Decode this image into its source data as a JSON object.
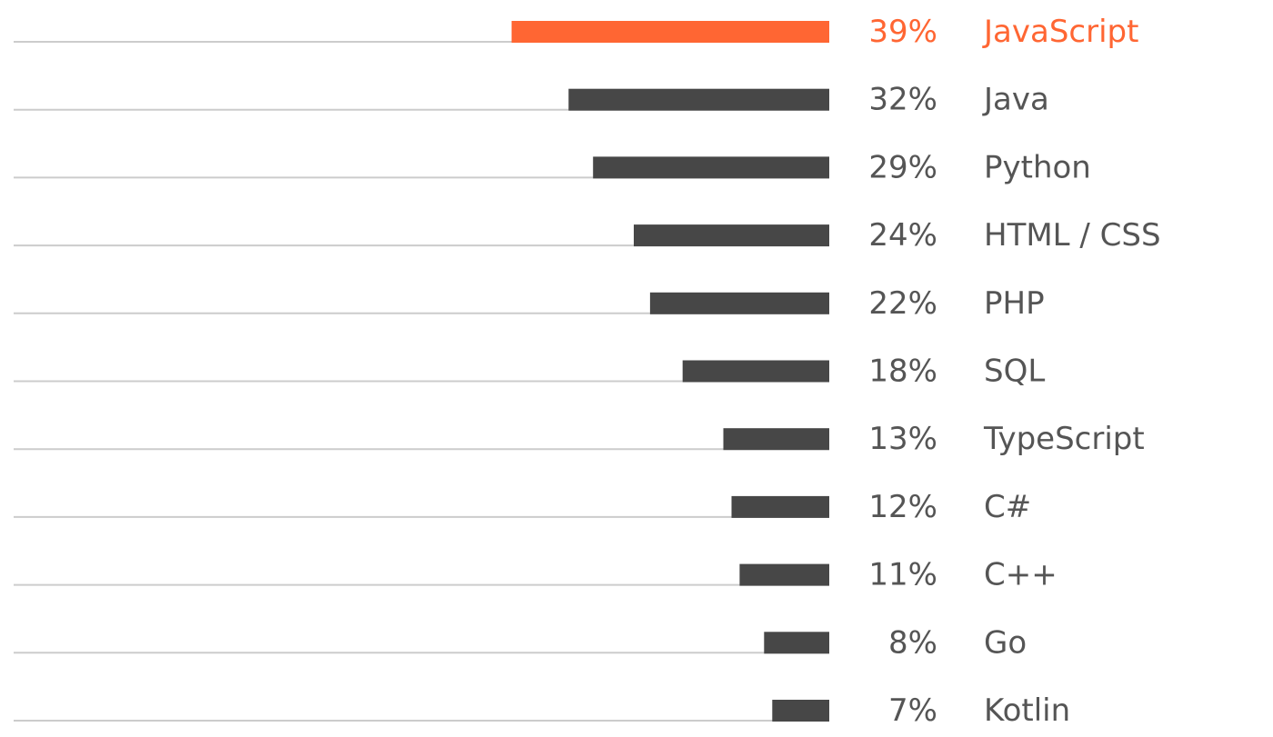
{
  "colors": {
    "highlight": "#ff6633",
    "bar": "#474747",
    "text": "#555555",
    "track": "#cccccc"
  },
  "chart_data": {
    "type": "bar",
    "orientation": "horizontal",
    "direction": "right-to-left",
    "xlim": [
      0,
      100
    ],
    "grid": false,
    "legend": "none",
    "highlight_index": 0,
    "categories": [
      "JavaScript",
      "Java",
      "Python",
      "HTML / CSS",
      "PHP",
      "SQL",
      "TypeScript",
      "C#",
      "C++",
      "Go",
      "Kotlin"
    ],
    "values": [
      39,
      32,
      29,
      24,
      22,
      18,
      13,
      12,
      11,
      8,
      7
    ],
    "value_labels": [
      "39%",
      "32%",
      "29%",
      "24%",
      "22%",
      "18%",
      "13%",
      "12%",
      "11%",
      "8%",
      "7%"
    ]
  }
}
